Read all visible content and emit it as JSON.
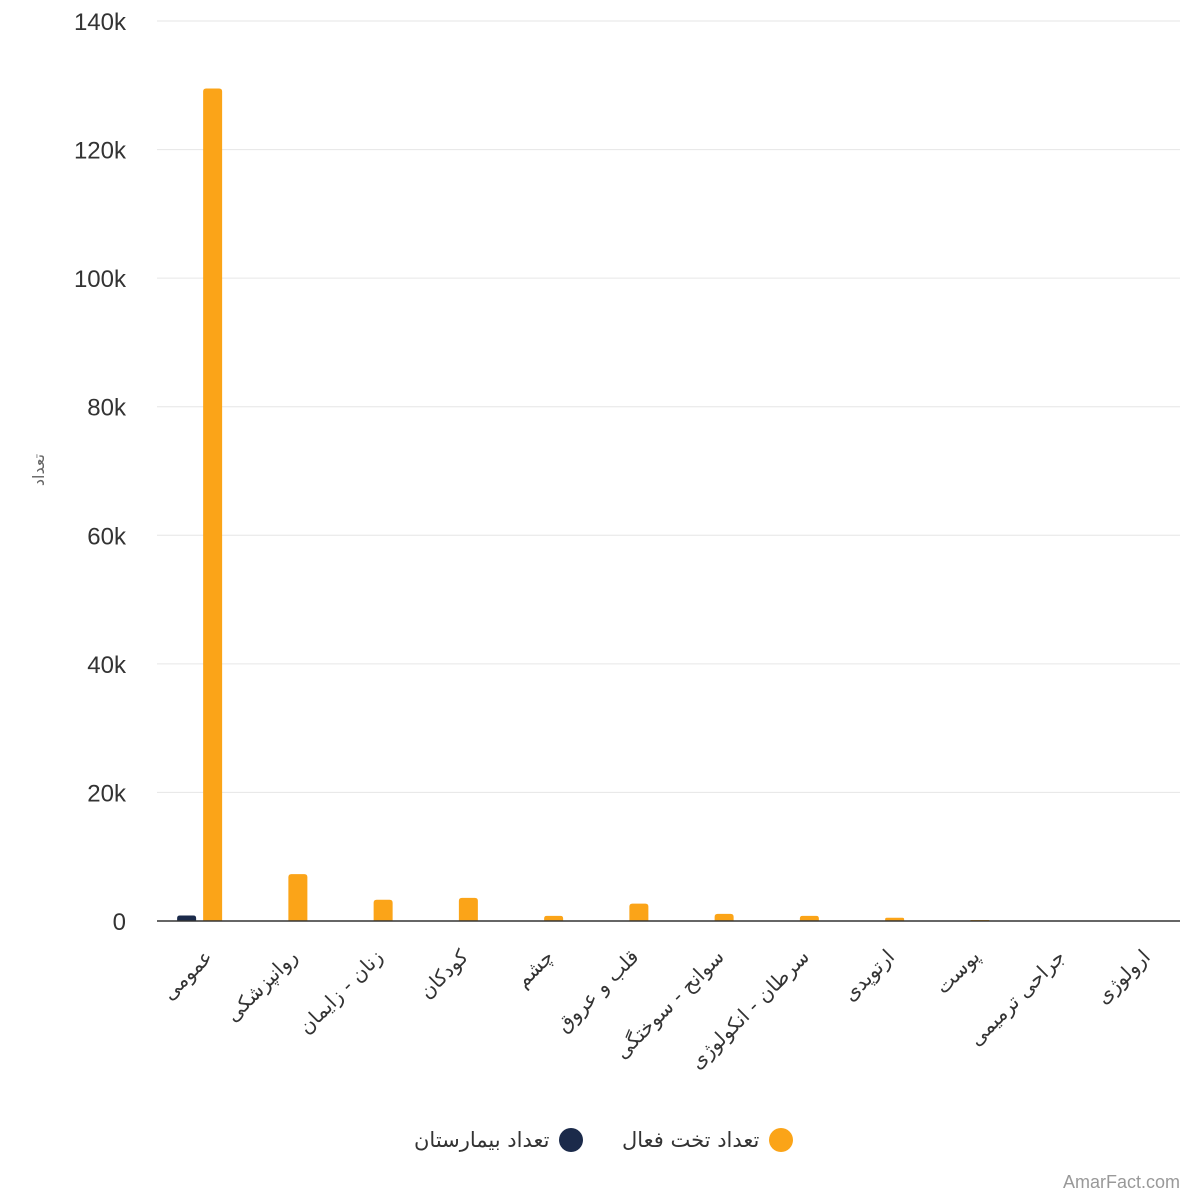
{
  "chart_data": {
    "type": "bar",
    "ylabel": "تعداد",
    "ylim": [
      0,
      140000
    ],
    "yticks": [
      0,
      20000,
      40000,
      60000,
      80000,
      100000,
      120000,
      140000
    ],
    "ytick_labels": [
      "0",
      "20k",
      "40k",
      "60k",
      "80k",
      "100k",
      "120k",
      "140k"
    ],
    "categories": [
      "عمومی",
      "روانپزشکی",
      "زنان - زایمان",
      "کودکان",
      "چشم",
      "قلب و عروق",
      "سوانح - سوختگی",
      "سرطان - انکولوژی",
      "ارتوپدی",
      "پوست",
      "جراحی ترمیمی",
      "ارولوژی"
    ],
    "series": [
      {
        "name": "تعداد بیمارستان",
        "color": "#1b2a4a",
        "values": [
          850,
          40,
          50,
          60,
          30,
          40,
          20,
          20,
          20,
          10,
          5,
          5
        ]
      },
      {
        "name": "تعداد تخت فعال",
        "color": "#fba418",
        "values": [
          129500,
          7300,
          3300,
          3600,
          800,
          2700,
          1100,
          800,
          500,
          150,
          50,
          50
        ]
      }
    ],
    "grid": true,
    "legend_position": "bottom"
  },
  "credit": "AmarFact.com"
}
